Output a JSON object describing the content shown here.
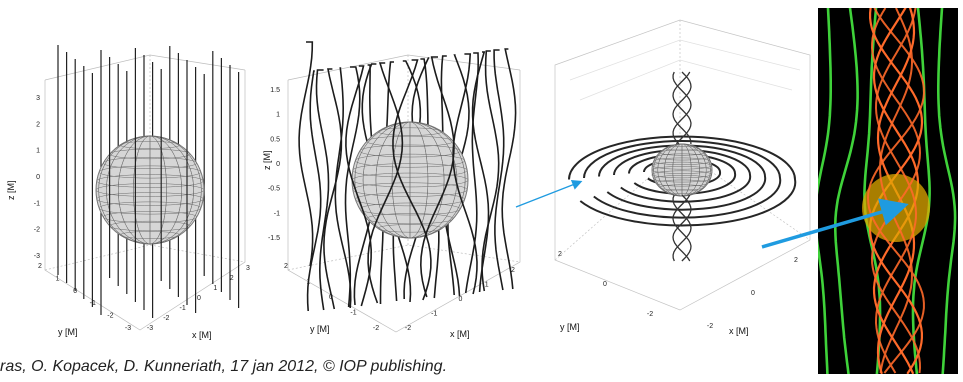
{
  "panels": [
    {
      "kind": "uniform-field",
      "axis_labels": {
        "x": "x [M]",
        "y": "y [M]",
        "z": "z [M]"
      },
      "z_ticks": [
        "3",
        "2",
        "1",
        "0",
        "-1",
        "-2",
        "-3"
      ],
      "x_ticks": [
        "-3",
        "-2",
        "-1",
        "0",
        "1",
        "2",
        "3"
      ],
      "y_ticks": [
        "2",
        "1",
        "0",
        "-1",
        "-2",
        "-3"
      ]
    },
    {
      "kind": "distorted-field",
      "axis_labels": {
        "x": "x [M]",
        "y": "y [M]",
        "z": "z [M]"
      },
      "z_ticks": [
        "1.5",
        "1",
        "0.5",
        "0",
        "-0.5",
        "-1",
        "-1.5"
      ],
      "x_ticks": [
        "-2",
        "-1",
        "0",
        "1",
        "2"
      ],
      "y_ticks": [
        "2",
        "1",
        "0",
        "-1",
        "-2"
      ]
    },
    {
      "kind": "spiral-field",
      "axis_labels": {
        "x": "x [M]",
        "y": "y [M]"
      },
      "x_ticks": [
        "-2",
        "0",
        "2"
      ],
      "y_ticks": [
        "2",
        "0",
        "-2"
      ]
    }
  ],
  "credit": "ras, O. Kopacek, D. Kunneriath, 17 jan 2012, © IOP publishing.",
  "colors": {
    "field_lines": "#1a1a1a",
    "sphere": "#d4d4d4",
    "render_bg": "#000000",
    "render_green": "#3fd23a",
    "render_orange": "#ff6a2a",
    "render_sphere": "#d9a400",
    "arrow": "#1f9be0"
  }
}
